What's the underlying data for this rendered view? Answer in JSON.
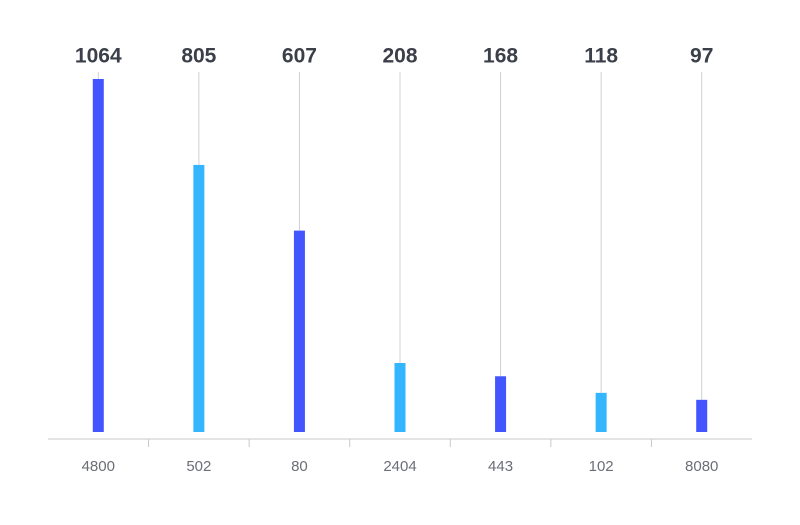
{
  "chart_data": {
    "type": "bar",
    "categories": [
      "4800",
      "502",
      "80",
      "2404",
      "443",
      "102",
      "8080"
    ],
    "values": [
      1064,
      805,
      607,
      208,
      168,
      118,
      97
    ],
    "colors": [
      "#4255ff",
      "#33b6ff",
      "#4255ff",
      "#33b6ff",
      "#4255ff",
      "#33b6ff",
      "#4255ff"
    ]
  }
}
